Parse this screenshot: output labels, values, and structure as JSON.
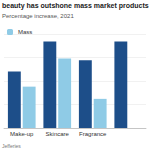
{
  "chart_data": {
    "type": "bar",
    "title": "beauty has outshone mass market products",
    "subtitle": "Percentage increase, 2021",
    "source": "Jefferies",
    "categories": [
      "Make-up",
      "Skincare",
      "Fragrance",
      null
    ],
    "series": [
      {
        "color": "#1d4e89",
        "values": [
          60,
          92,
          72,
          92
        ]
      },
      {
        "name": "Mass",
        "color": "#8fcbe6",
        "values": [
          44,
          74,
          31,
          null
        ]
      }
    ],
    "ylim": [
      0,
      100
    ],
    "yticks": [
      0,
      25,
      50,
      75,
      100
    ],
    "grid": true,
    "legend": "top-left",
    "tick_labels": "x"
  }
}
